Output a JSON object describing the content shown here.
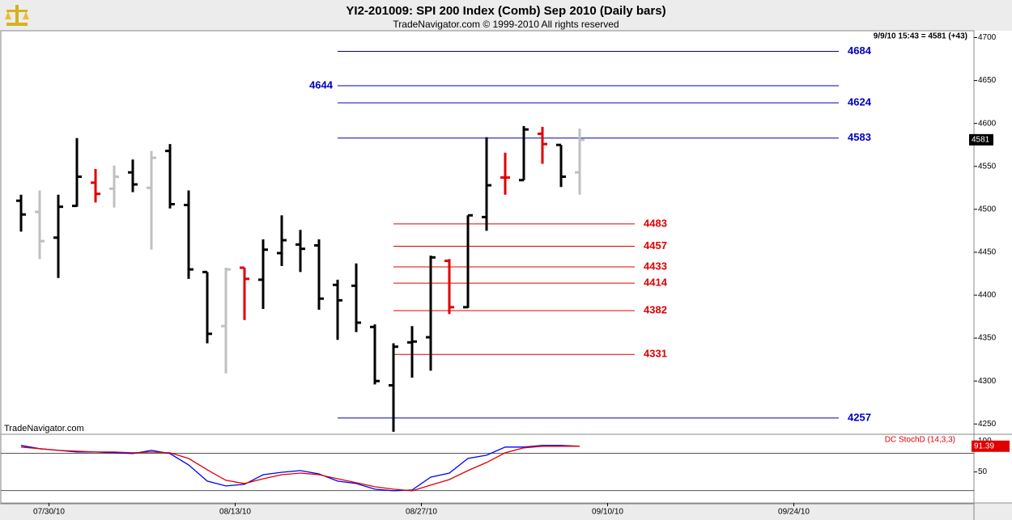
{
  "chart_data": [
    {
      "type": "ohlc",
      "title": "YI2-201009:  SPI 200 Index (Comb) Sep 2010  (Daily bars)",
      "subtitle": "TradeNavigator.com © 1999-2010 All rights reserved",
      "info": "9/9/10 15:43 = 4581 (+43)",
      "watermark": "TradeNavigator.com",
      "categories": [
        null,
        "07/30/10",
        null,
        null,
        null,
        null,
        null,
        null,
        null,
        null,
        null,
        "08/13/10",
        null,
        null,
        null,
        null,
        null,
        null,
        null,
        null,
        null,
        "08/27/10",
        null,
        null,
        null,
        null,
        null,
        null,
        null,
        null,
        null,
        "09/10/10",
        null,
        null,
        null,
        null,
        null,
        null,
        null,
        null,
        null,
        "09/24/10",
        null,
        null,
        null,
        null,
        null,
        null,
        null,
        null,
        null,
        null
      ],
      "open": [
        4510,
        4497,
        4467,
        4504,
        4531,
        4524,
        4543,
        4525,
        4568,
        4505,
        4427,
        4364,
        4432,
        4418,
        4449,
        4459,
        4458,
        4412,
        4411,
        4363,
        4295,
        4345,
        4351,
        4440,
        4386,
        4491,
        4537,
        4534,
        4588,
        4575,
        4543,
        null,
        null,
        null,
        null,
        null,
        null,
        null,
        null,
        null,
        null,
        null,
        null,
        null,
        null,
        null,
        null,
        null,
        null,
        null,
        null,
        null
      ],
      "high": [
        4517,
        4522,
        4517,
        4583,
        4547,
        4551,
        4558,
        4568,
        4576,
        4522,
        4427,
        4432,
        4432,
        4465,
        4493,
        4476,
        4465,
        4418,
        4437,
        4366,
        4344,
        4364,
        4446,
        4442,
        4493,
        4584,
        4566,
        4597,
        4596,
        4575,
        4594,
        null,
        null,
        null,
        null,
        null,
        null,
        null,
        null,
        null,
        null,
        null,
        null,
        null,
        null,
        null,
        null,
        null,
        null,
        null,
        null,
        null
      ],
      "low": [
        4474,
        4442,
        4420,
        4503,
        4508,
        4502,
        4520,
        4453,
        4501,
        4419,
        4344,
        4309,
        4371,
        4384,
        4434,
        4427,
        4383,
        4348,
        4357,
        4296,
        4241,
        4304,
        4312,
        4378,
        4385,
        4475,
        4517,
        4534,
        4553,
        4526,
        4517,
        null,
        null,
        null,
        null,
        null,
        null,
        null,
        null,
        null,
        null,
        null,
        null,
        null,
        null,
        null,
        null,
        null,
        null,
        null,
        null,
        null
      ],
      "close": [
        4494,
        4463,
        4503,
        4538,
        4518,
        4538,
        4529,
        4560,
        4506,
        4430,
        4355,
        4430,
        4419,
        4453,
        4464,
        4454,
        4396,
        4394,
        4368,
        4300,
        4340,
        4346,
        4444,
        4386,
        4493,
        4528,
        4537,
        4593,
        4576,
        4538,
        4581,
        null,
        null,
        null,
        null,
        null,
        null,
        null,
        null,
        null,
        null,
        null,
        null,
        null,
        null,
        null,
        null,
        null,
        null,
        null,
        null,
        null
      ],
      "colors": [
        "#000000",
        "#c0c0c0",
        "#000000",
        "#000000",
        "#e00000",
        "#c0c0c0",
        "#000000",
        "#c0c0c0",
        "#000000",
        "#000000",
        "#000000",
        "#c0c0c0",
        "#e00000",
        "#000000",
        "#000000",
        "#000000",
        "#000000",
        "#000000",
        "#000000",
        "#000000",
        "#000000",
        "#000000",
        "#000000",
        "#e00000",
        "#000000",
        "#000000",
        "#e00000",
        "#000000",
        "#e00000",
        "#000000",
        "#c0c0c0",
        null,
        null,
        null,
        null,
        null,
        null,
        null,
        null,
        null,
        null,
        null,
        null,
        null,
        null,
        null,
        null,
        null,
        null,
        null,
        null,
        null
      ],
      "levels": [
        {
          "value": 4684,
          "color": "#0000c0",
          "label_side": "right"
        },
        {
          "value": 4644,
          "color": "#0000c0",
          "label_side": "left"
        },
        {
          "value": 4624,
          "color": "#0000c0",
          "label_side": "right"
        },
        {
          "value": 4583,
          "color": "#0000c0",
          "label_side": "right"
        },
        {
          "value": 4257,
          "color": "#0000c0",
          "label_side": "right"
        },
        {
          "value": 4483,
          "color": "#e00000",
          "label_side": "right"
        },
        {
          "value": 4457,
          "color": "#e00000",
          "label_side": "right"
        },
        {
          "value": 4433,
          "color": "#e00000",
          "label_side": "right"
        },
        {
          "value": 4414,
          "color": "#e00000",
          "label_side": "right"
        },
        {
          "value": 4382,
          "color": "#e00000",
          "label_side": "right"
        },
        {
          "value": 4331,
          "color": "#e00000",
          "label_side": "right"
        }
      ],
      "ylim": [
        4238,
        4708
      ],
      "yticks": [
        4250,
        4300,
        4350,
        4400,
        4450,
        4500,
        4550,
        4600,
        4650,
        4700
      ]
    },
    {
      "type": "line",
      "title": "DC StochD (14,3,3)",
      "series": [
        {
          "color": "#0000ff",
          "values": [
            92.6,
            87.4,
            84.7,
            82.1,
            82.1,
            80.8,
            79.5,
            84.7,
            79.5,
            61.3,
            35.2,
            27.4,
            30,
            45.6,
            49.5,
            52.2,
            46.9,
            35.2,
            31.3,
            22.2,
            19.6,
            20.9,
            41.7,
            48.2,
            71.7,
            76.9,
            90,
            90,
            92.6,
            92.6,
            91.3,
            null,
            null,
            null,
            null,
            null,
            null,
            null,
            null,
            null,
            null,
            null,
            null,
            null,
            null,
            null,
            null,
            null,
            null,
            null,
            null,
            null
          ]
        },
        {
          "color": "#e00000",
          "values": [
            90,
            87.4,
            84.7,
            83.4,
            82.1,
            82.1,
            80.8,
            82.1,
            80.8,
            71.7,
            53.5,
            36.5,
            31.3,
            39.1,
            45.6,
            48.2,
            45.6,
            39.1,
            32.6,
            26.1,
            22.2,
            19.6,
            28.7,
            37.8,
            52.2,
            65.2,
            80.8,
            88.7,
            91.3,
            91.3,
            91.39,
            null,
            null,
            null,
            null,
            null,
            null,
            null,
            null,
            null,
            null,
            null,
            null,
            null,
            null,
            null,
            null,
            null,
            null,
            null,
            null,
            null
          ]
        }
      ],
      "levels": [
        80,
        20
      ],
      "ylim": [
        0,
        108
      ],
      "yticks": [
        50,
        100
      ]
    }
  ]
}
